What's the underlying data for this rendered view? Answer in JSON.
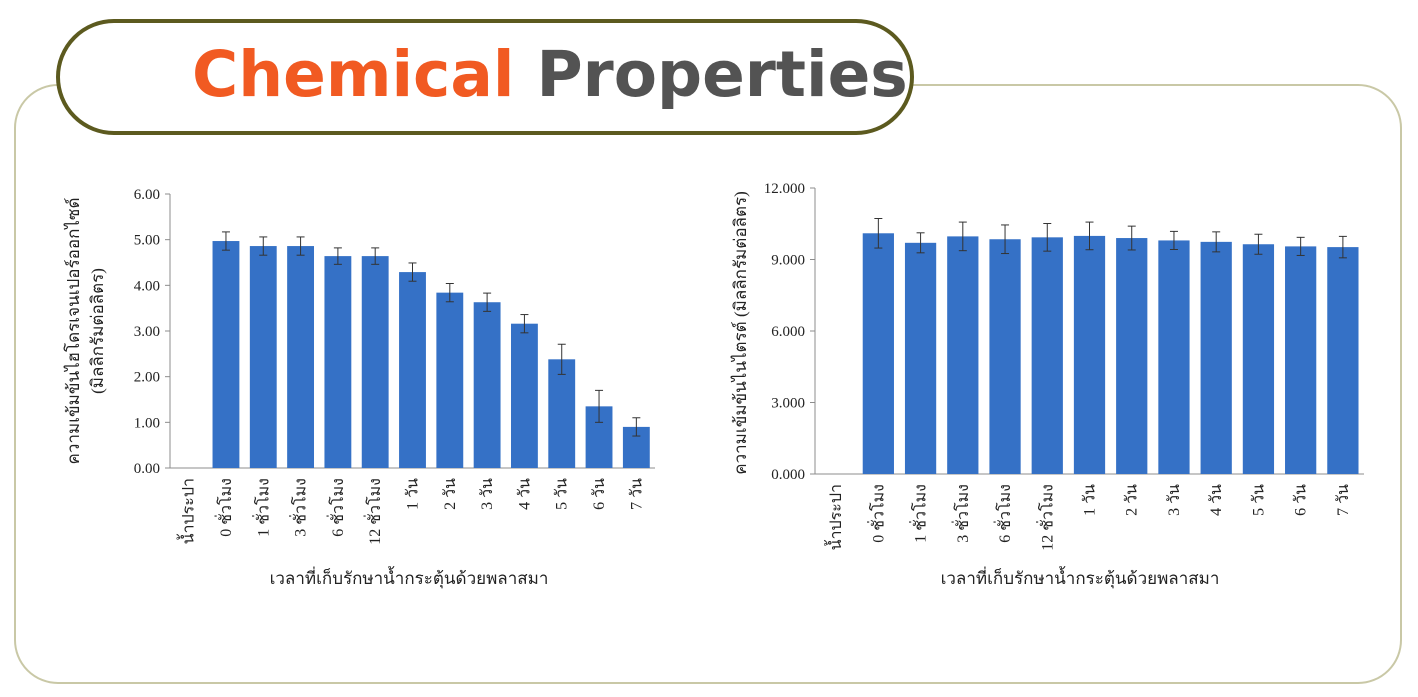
{
  "title": {
    "part1": "Chemical",
    "part2": "Properties"
  },
  "colors": {
    "accent": "#f15a22",
    "title_dark": "#535353",
    "bar": "#3571c6",
    "frame": "#c9c8a6",
    "pill_border": "#5c5a1f"
  },
  "chart_data": [
    {
      "type": "bar",
      "ylabel_line1": "ความเข้มข้นไฮโดรเจนเปอร์ออกไซด์",
      "ylabel_line2": "(มิลลิกรัมต่อลิตร)",
      "xlabel": "เวลาที่เก็บรักษาน้ำกระตุ้นด้วยพลาสมา",
      "categories": [
        "น้ำประปา",
        "0 ชั่วโมง",
        "1 ชั่วโมง",
        "3 ชั่วโมง",
        "6 ชั่วโมง",
        "12 ชั่วโมง",
        "1 วัน",
        "2 วัน",
        "3 วัน",
        "4 วัน",
        "5 วัน",
        "6 วัน",
        "7 วัน"
      ],
      "values": [
        0,
        4.97,
        4.86,
        4.86,
        4.64,
        4.64,
        4.29,
        3.84,
        3.63,
        3.16,
        2.38,
        1.35,
        0.9
      ],
      "errors": [
        0,
        0.2,
        0.2,
        0.2,
        0.18,
        0.18,
        0.2,
        0.2,
        0.2,
        0.2,
        0.33,
        0.35,
        0.2
      ],
      "ylim": [
        0,
        6
      ],
      "yticks": [
        "0.00",
        "1.00",
        "2.00",
        "3.00",
        "4.00",
        "5.00",
        "6.00"
      ]
    },
    {
      "type": "bar",
      "ylabel_line1": "ความเข้มข้นไนไตรต์ (มิลลิกรัมต่อลิตร)",
      "xlabel": "เวลาที่เก็บรักษาน้ำกระตุ้นด้วยพลาสมา",
      "categories": [
        "น้ำประปา",
        "0 ชั่วโมง",
        "1 ชั่วโมง",
        "3 ชั่วโมง",
        "6 ชั่วโมง",
        "12 ชั่วโมง",
        "1 วัน",
        "2 วัน",
        "3 วัน",
        "4 วัน",
        "5 วัน",
        "6 วัน",
        "7 วัน"
      ],
      "values": [
        0,
        10.1,
        9.7,
        9.97,
        9.85,
        9.93,
        9.99,
        9.9,
        9.8,
        9.74,
        9.64,
        9.55,
        9.52
      ],
      "errors": [
        0,
        0.62,
        0.42,
        0.6,
        0.6,
        0.58,
        0.58,
        0.5,
        0.38,
        0.42,
        0.42,
        0.38,
        0.45
      ],
      "ylim": [
        0,
        12
      ],
      "yticks": [
        "0.000",
        "3.000",
        "6.000",
        "9.000",
        "12.000"
      ]
    }
  ]
}
